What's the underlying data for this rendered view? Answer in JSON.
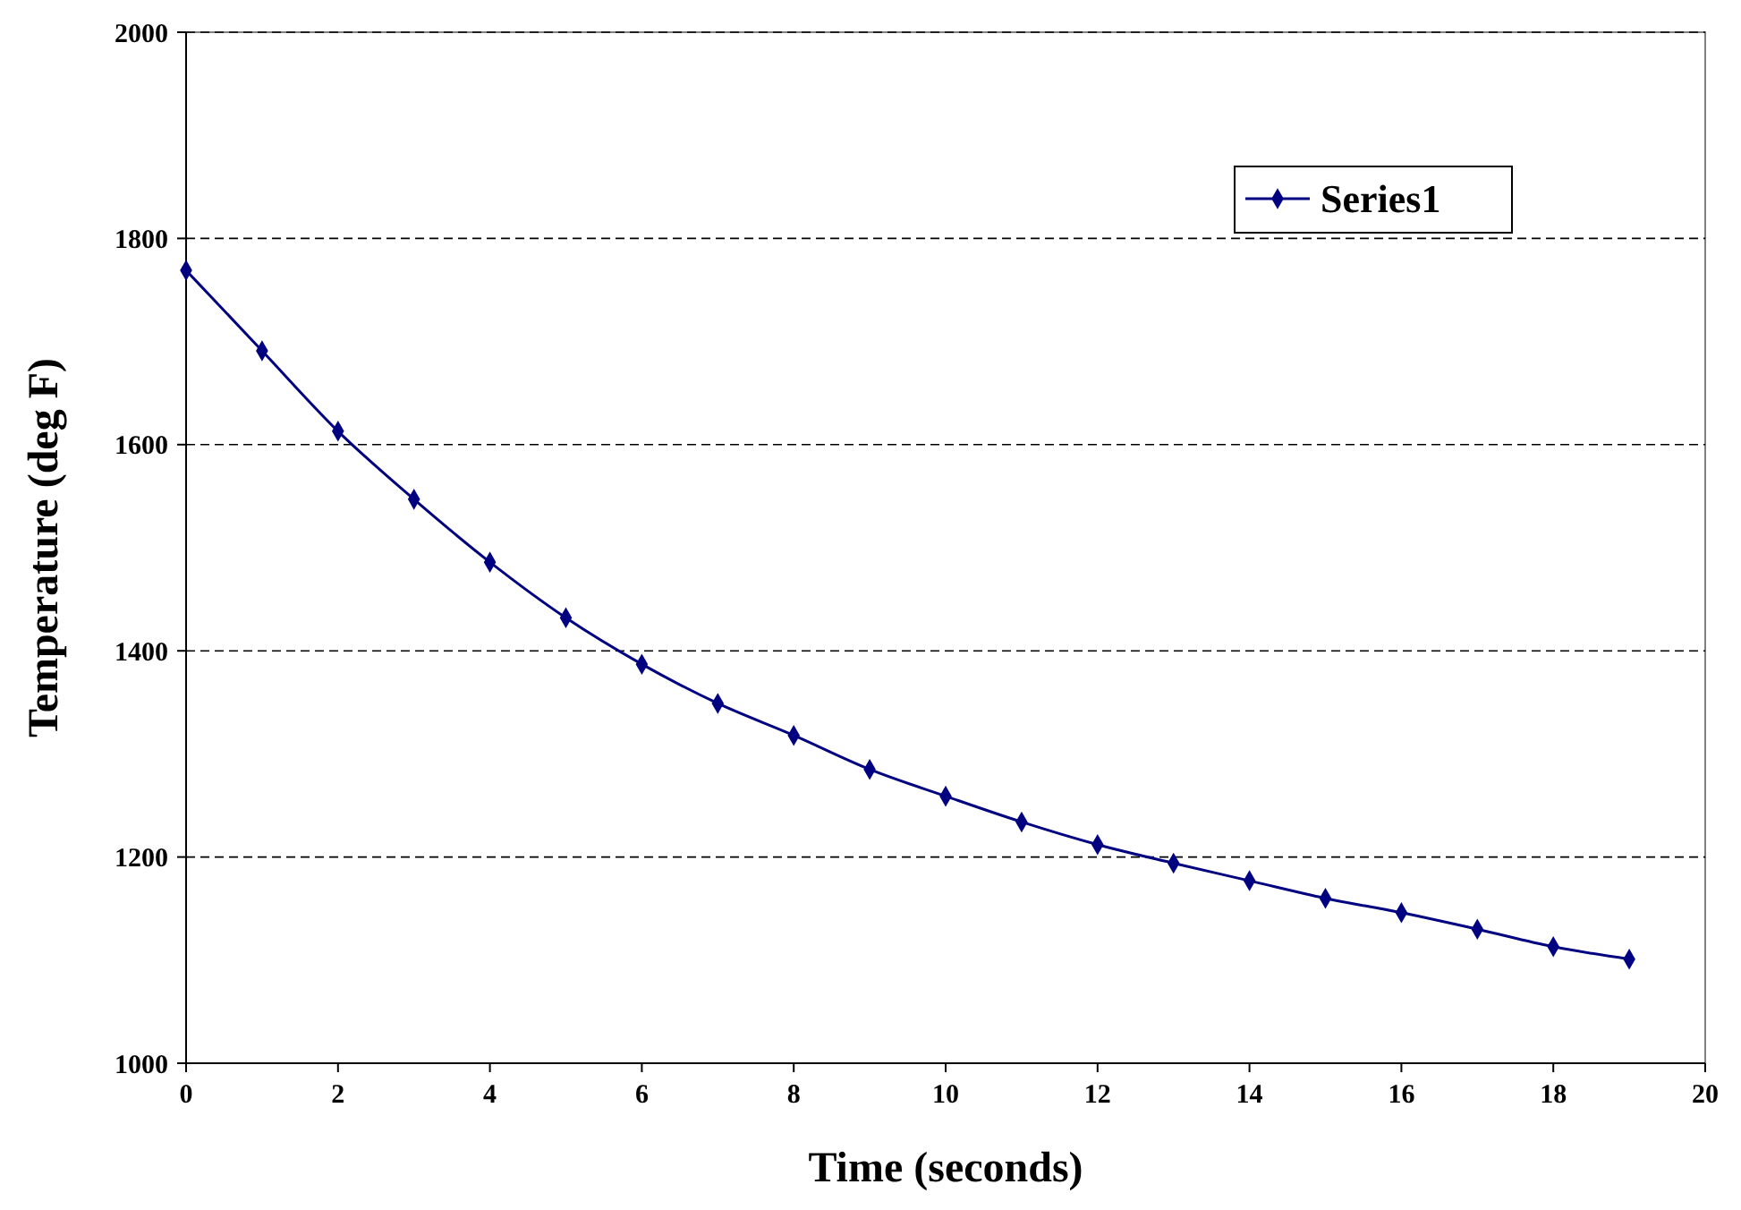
{
  "chart_data": {
    "type": "line",
    "xlabel": "Time (seconds)",
    "ylabel": "Temperature (deg F)",
    "x": [
      0,
      1,
      2,
      3,
      4,
      5,
      6,
      7,
      8,
      9,
      10,
      11,
      12,
      13,
      14,
      15,
      16,
      17,
      18,
      19
    ],
    "series": [
      {
        "name": "Series1",
        "color": "#000080",
        "values": [
          1769,
          1691,
          1613,
          1547,
          1486,
          1432,
          1387,
          1349,
          1318,
          1285,
          1259,
          1234,
          1212,
          1194,
          1177,
          1160,
          1146,
          1130,
          1113,
          1101
        ]
      }
    ],
    "xlim": [
      0,
      20
    ],
    "xticks": [
      0,
      2,
      4,
      6,
      8,
      10,
      12,
      14,
      16,
      18,
      20
    ],
    "ylim": [
      1000,
      2000
    ],
    "yticks": [
      1000,
      1200,
      1400,
      1600,
      1800,
      2000
    ],
    "grid": "y",
    "legend": "top right",
    "marker": "diamond",
    "line_style": "solid"
  }
}
